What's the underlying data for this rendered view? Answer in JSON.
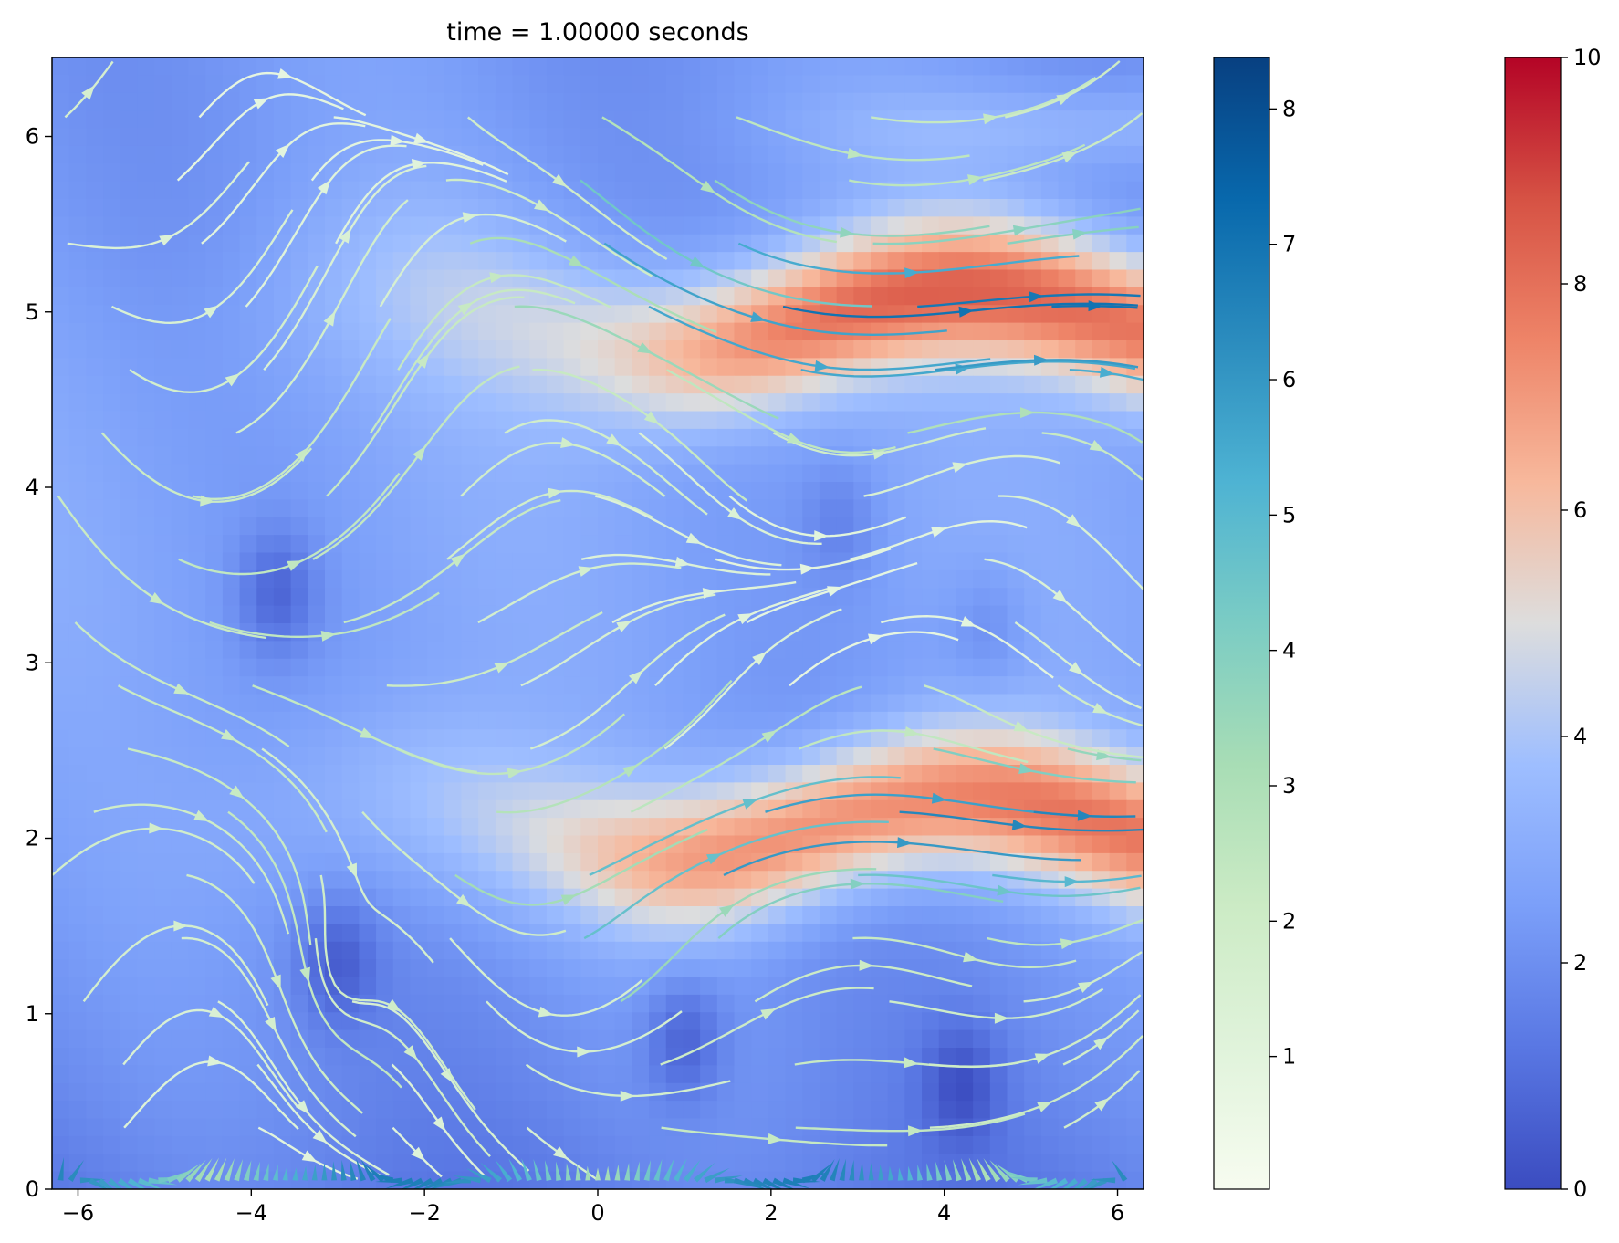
{
  "chart_data": {
    "type": "heatmap",
    "title": "time = 1.00000 seconds",
    "xlabel": "",
    "ylabel": "",
    "xlim": [
      -6.3,
      6.3
    ],
    "ylim": [
      0,
      6.45
    ],
    "x_ticks": [
      "−6",
      "−4",
      "−2",
      "0",
      "2",
      "4",
      "6"
    ],
    "y_ticks": [
      "0",
      "1",
      "2",
      "3",
      "4",
      "5",
      "6"
    ],
    "x_tick_values": [
      -6,
      -4,
      -2,
      0,
      2,
      4,
      6
    ],
    "y_tick_values": [
      0,
      1,
      2,
      3,
      4,
      5,
      6
    ],
    "heatmap": {
      "colormap": "coolwarm",
      "vmin": 0,
      "vmax": 10,
      "high_bands": [
        {
          "y_center": 4.95,
          "x_start": 0.5,
          "peak": 8.2
        },
        {
          "y_center": 2.05,
          "x_start": 0.0,
          "peak": 7.8
        }
      ],
      "low_spots": [
        {
          "x": -3.7,
          "y": 3.4,
          "value": 0.8
        },
        {
          "x": -3.0,
          "y": 1.3,
          "value": 0.9
        },
        {
          "x": 1.0,
          "y": 0.85,
          "value": 0.8
        },
        {
          "x": 4.2,
          "y": 0.6,
          "value": 0.9
        },
        {
          "x": 2.8,
          "y": 3.8,
          "value": 1.5
        },
        {
          "x": 4.5,
          "y": 3.2,
          "value": 1.6
        }
      ]
    },
    "streamlines": {
      "colormap": "GnBu",
      "vmin": 0,
      "vmax": 8.4
    },
    "colorbars": [
      {
        "name": "speed",
        "colormap": "GnBu",
        "ticks": [
          "1",
          "2",
          "3",
          "4",
          "5",
          "6",
          "7",
          "8"
        ],
        "tick_values": [
          1,
          2,
          3,
          4,
          5,
          6,
          7,
          8
        ],
        "vmin": 0.02,
        "vmax": 8.38
      },
      {
        "name": "field",
        "colormap": "coolwarm",
        "ticks": [
          "0",
          "2",
          "4",
          "6",
          "8",
          "10"
        ],
        "tick_values": [
          0,
          2,
          4,
          6,
          8,
          10
        ],
        "vmin": 0,
        "vmax": 10
      }
    ]
  }
}
